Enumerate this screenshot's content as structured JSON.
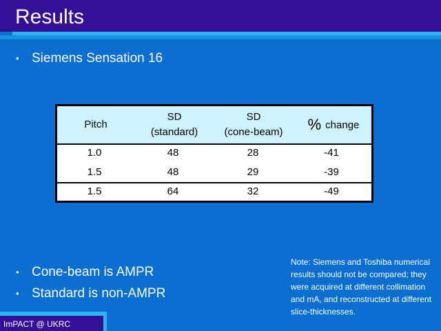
{
  "slide": {
    "title": "Results",
    "bullet_top": "Siemens Sensation 16",
    "bullet_dot": "•",
    "bullets_bottom": [
      "Cone-beam is AMPR",
      "Standard is non-AMPR"
    ]
  },
  "table": {
    "headers": {
      "pitch": "Pitch",
      "sd_standard_line1": "SD",
      "sd_standard_line2": "(standard)",
      "sd_cone_line1": "SD",
      "sd_cone_line2": "(cone-beam)",
      "change_symbol": "%",
      "change_word": "change"
    },
    "rows": [
      [
        "1.0",
        "48",
        "28",
        "-41"
      ],
      [
        "1.5",
        "48",
        "29",
        "-39"
      ],
      [
        "1.5",
        "64",
        "32",
        "-49"
      ]
    ]
  },
  "note": "Note: Siemens and Toshiba numerical results should not be compared; they were acquired at different collimation and mA, and reconstructed at different slice-thicknesses.",
  "footer": "ImPACT @ UKRC",
  "colors": {
    "background": "#0a6fd0",
    "banner": "#350f96",
    "accent": "#2ab4f0",
    "table_header": "#cdf3ff"
  }
}
